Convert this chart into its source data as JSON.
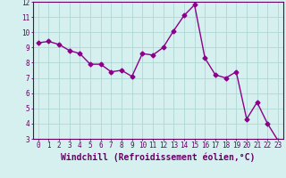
{
  "x": [
    0,
    1,
    2,
    3,
    4,
    5,
    6,
    7,
    8,
    9,
    10,
    11,
    12,
    13,
    14,
    15,
    16,
    17,
    18,
    19,
    20,
    21,
    22,
    23
  ],
  "y": [
    9.3,
    9.4,
    9.2,
    8.8,
    8.6,
    7.9,
    7.9,
    7.4,
    7.5,
    7.1,
    8.6,
    8.5,
    9.0,
    10.1,
    11.1,
    11.8,
    8.3,
    7.2,
    7.0,
    7.4,
    4.3,
    5.4,
    4.0,
    2.9
  ],
  "line_color": "#8B008B",
  "marker": "D",
  "marker_size": 2.5,
  "bg_color": "#d5f0ee",
  "grid_color": "#aed8d4",
  "xlabel": "Windchill (Refroidissement éolien,°C)",
  "xlim": [
    -0.5,
    23.5
  ],
  "ylim": [
    3,
    12
  ],
  "yticks": [
    3,
    4,
    5,
    6,
    7,
    8,
    9,
    10,
    11,
    12
  ],
  "xticks": [
    0,
    1,
    2,
    3,
    4,
    5,
    6,
    7,
    8,
    9,
    10,
    11,
    12,
    13,
    14,
    15,
    16,
    17,
    18,
    19,
    20,
    21,
    22,
    23
  ],
  "tick_label_fontsize": 5.5,
  "xlabel_fontsize": 7.0,
  "axis_color": "#660066",
  "line_width": 1.0
}
